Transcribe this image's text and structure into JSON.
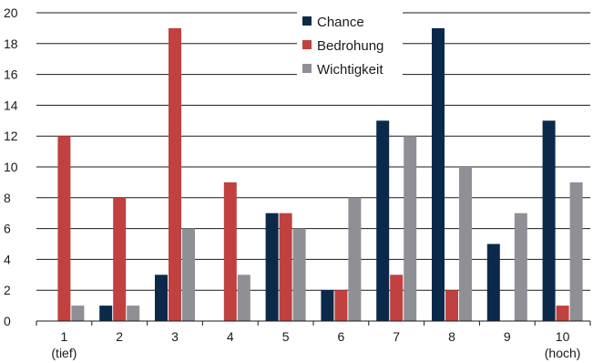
{
  "chart_data": {
    "type": "bar",
    "categories": [
      "1",
      "2",
      "3",
      "4",
      "5",
      "6",
      "7",
      "8",
      "9",
      "10"
    ],
    "category_sublabels": [
      "(tief)",
      "",
      "",
      "",
      "",
      "",
      "",
      "",
      "",
      "(hoch)"
    ],
    "series": [
      {
        "name": "Chance",
        "color": "#0b2a4a",
        "values": [
          0,
          1,
          3,
          0,
          7,
          2,
          13,
          19,
          5,
          13
        ]
      },
      {
        "name": "Bedrohung",
        "color": "#c0413f",
        "values": [
          12,
          8,
          19,
          9,
          7,
          2,
          3,
          2,
          0,
          1
        ]
      },
      {
        "name": "Wichtigkeit",
        "color": "#8f8f96",
        "values": [
          1,
          1,
          6,
          3,
          6,
          8,
          12,
          10,
          7,
          9
        ]
      }
    ],
    "ylim": [
      0,
      20
    ],
    "yticks": [
      0,
      2,
      4,
      6,
      8,
      10,
      12,
      14,
      16,
      18,
      20
    ],
    "grid": true,
    "legend_position": "top-center",
    "title": "",
    "xlabel": "",
    "ylabel": ""
  }
}
